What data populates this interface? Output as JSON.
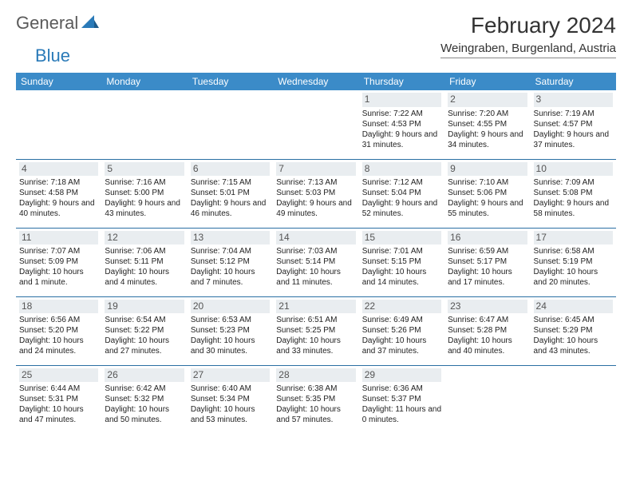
{
  "logo": {
    "general": "General",
    "blue": "Blue"
  },
  "title": "February 2024",
  "location": "Weingraben, Burgenland, Austria",
  "colors": {
    "header_bg": "#3b8bc8",
    "header_text": "#ffffff",
    "row_border": "#2a6fa3",
    "daynum_bg": "#e9edf0",
    "daynum_text": "#555555",
    "body_text": "#222222",
    "logo_gray": "#5a5a5a",
    "logo_blue": "#2a7ab8"
  },
  "day_headers": [
    "Sunday",
    "Monday",
    "Tuesday",
    "Wednesday",
    "Thursday",
    "Friday",
    "Saturday"
  ],
  "weeks": [
    [
      null,
      null,
      null,
      null,
      {
        "n": "1",
        "sr": "Sunrise: 7:22 AM",
        "ss": "Sunset: 4:53 PM",
        "dl": "Daylight: 9 hours and 31 minutes."
      },
      {
        "n": "2",
        "sr": "Sunrise: 7:20 AM",
        "ss": "Sunset: 4:55 PM",
        "dl": "Daylight: 9 hours and 34 minutes."
      },
      {
        "n": "3",
        "sr": "Sunrise: 7:19 AM",
        "ss": "Sunset: 4:57 PM",
        "dl": "Daylight: 9 hours and 37 minutes."
      }
    ],
    [
      {
        "n": "4",
        "sr": "Sunrise: 7:18 AM",
        "ss": "Sunset: 4:58 PM",
        "dl": "Daylight: 9 hours and 40 minutes."
      },
      {
        "n": "5",
        "sr": "Sunrise: 7:16 AM",
        "ss": "Sunset: 5:00 PM",
        "dl": "Daylight: 9 hours and 43 minutes."
      },
      {
        "n": "6",
        "sr": "Sunrise: 7:15 AM",
        "ss": "Sunset: 5:01 PM",
        "dl": "Daylight: 9 hours and 46 minutes."
      },
      {
        "n": "7",
        "sr": "Sunrise: 7:13 AM",
        "ss": "Sunset: 5:03 PM",
        "dl": "Daylight: 9 hours and 49 minutes."
      },
      {
        "n": "8",
        "sr": "Sunrise: 7:12 AM",
        "ss": "Sunset: 5:04 PM",
        "dl": "Daylight: 9 hours and 52 minutes."
      },
      {
        "n": "9",
        "sr": "Sunrise: 7:10 AM",
        "ss": "Sunset: 5:06 PM",
        "dl": "Daylight: 9 hours and 55 minutes."
      },
      {
        "n": "10",
        "sr": "Sunrise: 7:09 AM",
        "ss": "Sunset: 5:08 PM",
        "dl": "Daylight: 9 hours and 58 minutes."
      }
    ],
    [
      {
        "n": "11",
        "sr": "Sunrise: 7:07 AM",
        "ss": "Sunset: 5:09 PM",
        "dl": "Daylight: 10 hours and 1 minute."
      },
      {
        "n": "12",
        "sr": "Sunrise: 7:06 AM",
        "ss": "Sunset: 5:11 PM",
        "dl": "Daylight: 10 hours and 4 minutes."
      },
      {
        "n": "13",
        "sr": "Sunrise: 7:04 AM",
        "ss": "Sunset: 5:12 PM",
        "dl": "Daylight: 10 hours and 7 minutes."
      },
      {
        "n": "14",
        "sr": "Sunrise: 7:03 AM",
        "ss": "Sunset: 5:14 PM",
        "dl": "Daylight: 10 hours and 11 minutes."
      },
      {
        "n": "15",
        "sr": "Sunrise: 7:01 AM",
        "ss": "Sunset: 5:15 PM",
        "dl": "Daylight: 10 hours and 14 minutes."
      },
      {
        "n": "16",
        "sr": "Sunrise: 6:59 AM",
        "ss": "Sunset: 5:17 PM",
        "dl": "Daylight: 10 hours and 17 minutes."
      },
      {
        "n": "17",
        "sr": "Sunrise: 6:58 AM",
        "ss": "Sunset: 5:19 PM",
        "dl": "Daylight: 10 hours and 20 minutes."
      }
    ],
    [
      {
        "n": "18",
        "sr": "Sunrise: 6:56 AM",
        "ss": "Sunset: 5:20 PM",
        "dl": "Daylight: 10 hours and 24 minutes."
      },
      {
        "n": "19",
        "sr": "Sunrise: 6:54 AM",
        "ss": "Sunset: 5:22 PM",
        "dl": "Daylight: 10 hours and 27 minutes."
      },
      {
        "n": "20",
        "sr": "Sunrise: 6:53 AM",
        "ss": "Sunset: 5:23 PM",
        "dl": "Daylight: 10 hours and 30 minutes."
      },
      {
        "n": "21",
        "sr": "Sunrise: 6:51 AM",
        "ss": "Sunset: 5:25 PM",
        "dl": "Daylight: 10 hours and 33 minutes."
      },
      {
        "n": "22",
        "sr": "Sunrise: 6:49 AM",
        "ss": "Sunset: 5:26 PM",
        "dl": "Daylight: 10 hours and 37 minutes."
      },
      {
        "n": "23",
        "sr": "Sunrise: 6:47 AM",
        "ss": "Sunset: 5:28 PM",
        "dl": "Daylight: 10 hours and 40 minutes."
      },
      {
        "n": "24",
        "sr": "Sunrise: 6:45 AM",
        "ss": "Sunset: 5:29 PM",
        "dl": "Daylight: 10 hours and 43 minutes."
      }
    ],
    [
      {
        "n": "25",
        "sr": "Sunrise: 6:44 AM",
        "ss": "Sunset: 5:31 PM",
        "dl": "Daylight: 10 hours and 47 minutes."
      },
      {
        "n": "26",
        "sr": "Sunrise: 6:42 AM",
        "ss": "Sunset: 5:32 PM",
        "dl": "Daylight: 10 hours and 50 minutes."
      },
      {
        "n": "27",
        "sr": "Sunrise: 6:40 AM",
        "ss": "Sunset: 5:34 PM",
        "dl": "Daylight: 10 hours and 53 minutes."
      },
      {
        "n": "28",
        "sr": "Sunrise: 6:38 AM",
        "ss": "Sunset: 5:35 PM",
        "dl": "Daylight: 10 hours and 57 minutes."
      },
      {
        "n": "29",
        "sr": "Sunrise: 6:36 AM",
        "ss": "Sunset: 5:37 PM",
        "dl": "Daylight: 11 hours and 0 minutes."
      },
      null,
      null
    ]
  ]
}
